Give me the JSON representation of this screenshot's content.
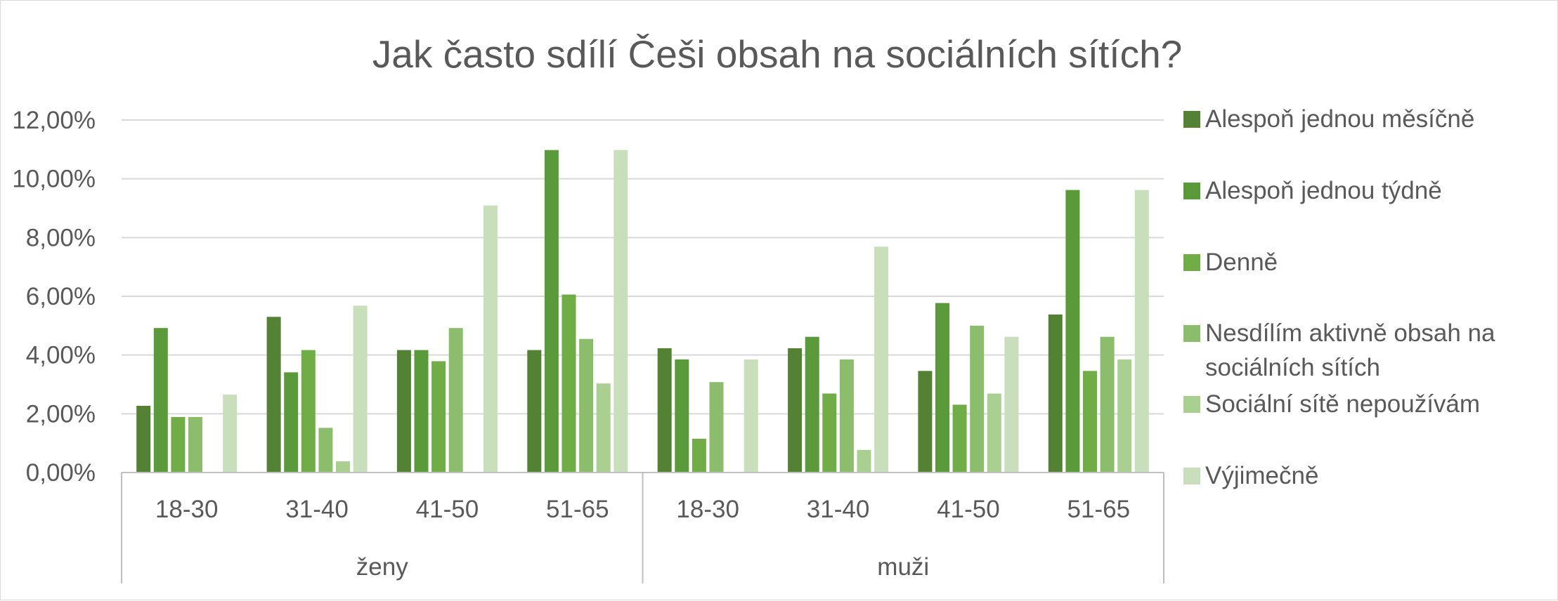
{
  "chart_data": {
    "type": "bar",
    "title": "Jak často sdílí Češi obsah na sociálních sítích?",
    "xlabel": "",
    "ylabel": "",
    "ylim": [
      0,
      0.12
    ],
    "y_ticks": [
      0,
      0.02,
      0.04,
      0.06,
      0.08,
      0.1,
      0.12
    ],
    "y_tick_labels": [
      "0,00%",
      "2,00%",
      "4,00%",
      "6,00%",
      "8,00%",
      "10,00%",
      "12,00%"
    ],
    "grid": true,
    "legend_position": "right",
    "groups": [
      {
        "label": "ženy",
        "categories": [
          "18-30",
          "31-40",
          "41-50",
          "51-65"
        ]
      },
      {
        "label": "muži",
        "categories": [
          "18-30",
          "31-40",
          "41-50",
          "51-65"
        ]
      }
    ],
    "series": [
      {
        "name": "Alespoň jednou měsíčně",
        "color": "#548235",
        "values": [
          0.0227,
          0.053,
          0.0417,
          0.0417,
          0.0423,
          0.0423,
          0.0346,
          0.0538
        ]
      },
      {
        "name": "Alespoň jednou týdně",
        "color": "#5b9a3a",
        "values": [
          0.0492,
          0.0341,
          0.0417,
          0.1098,
          0.0385,
          0.0462,
          0.0577,
          0.0962
        ]
      },
      {
        "name": "Denně",
        "color": "#70ad47",
        "values": [
          0.0189,
          0.0417,
          0.0379,
          0.0606,
          0.0115,
          0.0269,
          0.0231,
          0.0346
        ]
      },
      {
        "name": "Nesdílím aktivně obsah na sociálních sítích",
        "color": "#8cbd6c",
        "values": [
          0.0189,
          0.0152,
          0.0492,
          0.0455,
          0.0308,
          0.0385,
          0.05,
          0.0462
        ]
      },
      {
        "name": "Sociální sítě nepoužívám",
        "color": "#a9cf91",
        "values": [
          0,
          0.0038,
          0,
          0.0303,
          0,
          0.0077,
          0.0269,
          0.0385
        ]
      },
      {
        "name": "Výjimečně",
        "color": "#c9dfbb",
        "values": [
          0.0265,
          0.0568,
          0.0909,
          0.1098,
          0.0385,
          0.0769,
          0.0462,
          0.0962
        ]
      }
    ],
    "legend_lines": [
      [
        "Alespoň jednou měsíčně"
      ],
      [
        "Alespoň jednou týdně"
      ],
      [
        "Denně"
      ],
      [
        "Nesdílím aktivně obsah na",
        "sociálních sítích"
      ],
      [
        "Sociální sítě nepoužívám"
      ],
      [
        "Výjimečně"
      ]
    ]
  }
}
